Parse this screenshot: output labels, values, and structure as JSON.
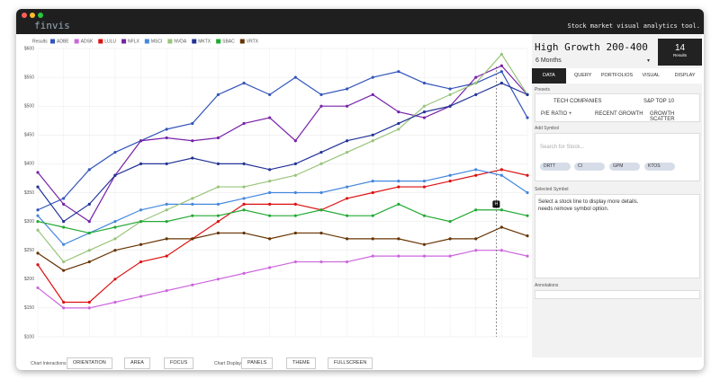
{
  "app": {
    "logo": "finvis",
    "tagline": "Stock market visual analytics tool."
  },
  "chart_data": {
    "type": "line",
    "legend_title": "Results",
    "categories": [
      null,
      null,
      null,
      null,
      null,
      null,
      null,
      null,
      null,
      null,
      null,
      null,
      null,
      null,
      null,
      null,
      null,
      null,
      null,
      null
    ],
    "ylim": [
      100,
      600
    ],
    "yticks": [
      {
        "value": 100,
        "label": "$100"
      },
      {
        "value": 150,
        "label": "$150"
      },
      {
        "value": 200,
        "label": "$200"
      },
      {
        "value": 250,
        "label": "$250"
      },
      {
        "value": 300,
        "label": "$300"
      },
      {
        "value": 350,
        "label": "$350"
      },
      {
        "value": 400,
        "label": "$400"
      },
      {
        "value": 450,
        "label": "$450"
      },
      {
        "value": 500,
        "label": "$500"
      },
      {
        "value": 550,
        "label": "$550"
      },
      {
        "value": 600,
        "label": "$600"
      }
    ],
    "grid": true,
    "cursor_label": "H",
    "series": [
      {
        "name": "ADBE",
        "color": "#3355bb",
        "values": [
          320,
          340,
          390,
          420,
          440,
          460,
          470,
          520,
          540,
          520,
          550,
          520,
          530,
          550,
          560,
          540,
          530,
          540,
          560,
          480
        ]
      },
      {
        "name": "ADSK",
        "color": "#cc66dd",
        "values": [
          185,
          150,
          150,
          160,
          170,
          180,
          190,
          200,
          210,
          220,
          230,
          230,
          230,
          240,
          240,
          240,
          240,
          250,
          250,
          240
        ]
      },
      {
        "name": "LULU",
        "color": "#dd1111",
        "values": [
          225,
          160,
          160,
          200,
          230,
          240,
          270,
          300,
          330,
          330,
          330,
          320,
          340,
          350,
          360,
          360,
          370,
          380,
          390,
          380
        ]
      },
      {
        "name": "NFLX",
        "color": "#7722aa",
        "values": [
          385,
          330,
          300,
          380,
          440,
          445,
          440,
          445,
          470,
          480,
          440,
          500,
          500,
          520,
          490,
          480,
          500,
          550,
          570,
          520
        ]
      },
      {
        "name": "MSCI",
        "color": "#4488dd",
        "values": [
          310,
          260,
          280,
          300,
          320,
          330,
          330,
          330,
          340,
          350,
          350,
          350,
          360,
          370,
          370,
          370,
          380,
          390,
          380,
          350
        ]
      },
      {
        "name": "NVDA",
        "color": "#99c47a",
        "values": [
          285,
          230,
          250,
          270,
          300,
          320,
          340,
          360,
          360,
          370,
          380,
          400,
          420,
          440,
          460,
          500,
          520,
          540,
          590,
          520
        ]
      },
      {
        "name": "MKTX",
        "color": "#223399",
        "values": [
          360,
          300,
          330,
          380,
          400,
          400,
          410,
          400,
          400,
          390,
          400,
          420,
          440,
          450,
          470,
          490,
          500,
          520,
          540,
          520
        ]
      },
      {
        "name": "SBAC",
        "color": "#22aa33",
        "values": [
          300,
          290,
          280,
          290,
          300,
          300,
          310,
          310,
          320,
          310,
          310,
          320,
          310,
          310,
          330,
          310,
          300,
          320,
          320,
          310
        ]
      },
      {
        "name": "VRTX",
        "color": "#663300",
        "values": [
          245,
          215,
          230,
          250,
          260,
          270,
          270,
          280,
          280,
          270,
          280,
          280,
          270,
          270,
          270,
          260,
          270,
          270,
          290,
          275
        ]
      }
    ]
  },
  "toolbar": {
    "interactions_label": "Chart Interactions",
    "interactions": [
      "ORIENTATION",
      "AREA",
      "FOCUS"
    ],
    "display_label": "Chart Display",
    "display": [
      "PANELS",
      "THEME",
      "FULLSCREEN"
    ]
  },
  "panel": {
    "portfolio": "High Growth 200-400",
    "period": "6 Months",
    "count": "14",
    "count_label": "Results",
    "tabs": [
      "DATA",
      "QUERY",
      "PORTFOLIOS",
      "VISUAL",
      "DISPLAY"
    ],
    "presets_label": "Presets",
    "presets": [
      "TECH COMPANIES",
      "S&P TOP 10",
      "P/E RATIO +",
      "RECENT GROWTH",
      "GROWTH SCATTER"
    ],
    "add_label": "Add Symbol",
    "search": "Search for Stock...",
    "chips": [
      "DRTT",
      "CI",
      "GPM",
      "KTOS"
    ],
    "selected_label": "Selected Symbol",
    "selected_text": [
      "Select a stock line to display more details.",
      "needs remove symbol option."
    ],
    "annotations_label": "Annotations"
  }
}
